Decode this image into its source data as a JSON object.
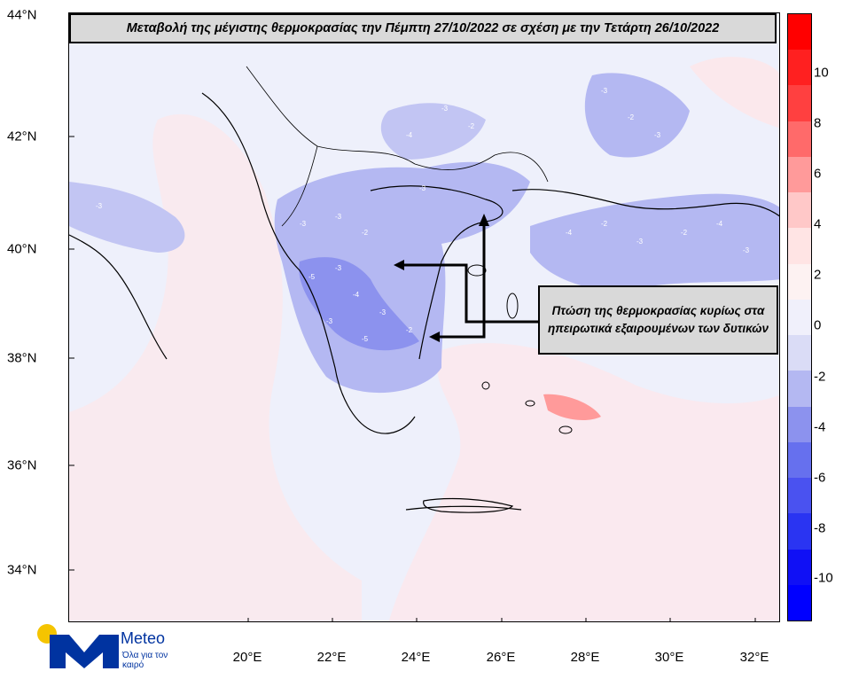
{
  "map": {
    "title": "Μεταβολή της μέγιστης θερμοκρασίας την Πέμπτη 27/10/2022 σε σχέση με την Τετάρτη 26/10/2022",
    "annotation": "Πτώση της θερμοκρασίας κυρίως στα ηπειρωτικά εξαιρουμένων των δυτικών",
    "latitude_labels": [
      "44°N",
      "42°N",
      "40°N",
      "38°N",
      "36°N",
      "34°N"
    ],
    "longitude_labels": [
      "20°E",
      "22°E",
      "24°E",
      "26°E",
      "28°E",
      "30°E",
      "32°E"
    ],
    "contour_marks": [
      "-3",
      "-3",
      "-2",
      "-5",
      "-3",
      "-4",
      "-3",
      "-2",
      "-3",
      "-5",
      "-3",
      "-3",
      "-2",
      "-4",
      "-3",
      "-2",
      "-3",
      "-4",
      "-2",
      "-3",
      "-2",
      "-4",
      "-3",
      "-3"
    ]
  },
  "colorbar": {
    "ticks": [
      "10",
      "8",
      "6",
      "4",
      "2",
      "0",
      "-2",
      "-4",
      "-6",
      "-8",
      "-10"
    ],
    "colors": [
      "#ff0000",
      "#ff2020",
      "#ff4040",
      "#ff6a6a",
      "#ff9a9a",
      "#ffc8c8",
      "#ffe4e4",
      "#fdf2f2",
      "#f0f0fb",
      "#dadcf6",
      "#b4b8f2",
      "#8c92ee",
      "#6670ee",
      "#4a52f0",
      "#2a34f2",
      "#1010f5",
      "#0000ff"
    ]
  },
  "logo": {
    "name": "Meteo",
    "tagline": "Όλα για τον καιρό"
  }
}
